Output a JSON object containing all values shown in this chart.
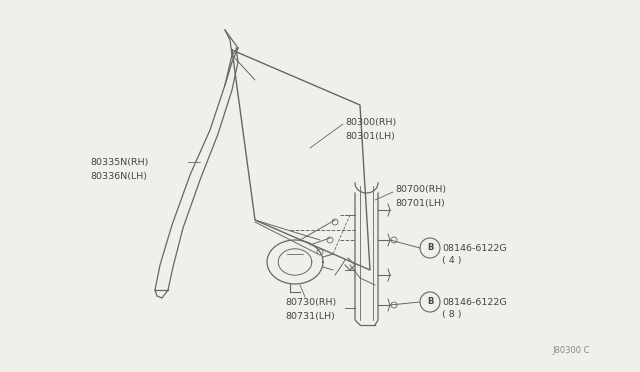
{
  "bg_color": "#f0f0eb",
  "line_color": "#666666",
  "text_color": "#444444",
  "diagram_code": "J80300 C",
  "labels": {
    "glass": {
      "line1": "80300(RH)",
      "line2": "80301(LH)"
    },
    "channel": {
      "line1": "80335N(RH)",
      "line2": "80336N(LH)"
    },
    "regulator": {
      "line1": "80700(RH)",
      "line2": "80701(LH)"
    },
    "motor": {
      "line1": "80730(RH)",
      "line2": "80731(LH)"
    },
    "bolt1": {
      "part": "08146-6122G",
      "qty": "( 4 )"
    },
    "bolt2": {
      "part": "08146-6122G",
      "qty": "( 8 )"
    }
  }
}
